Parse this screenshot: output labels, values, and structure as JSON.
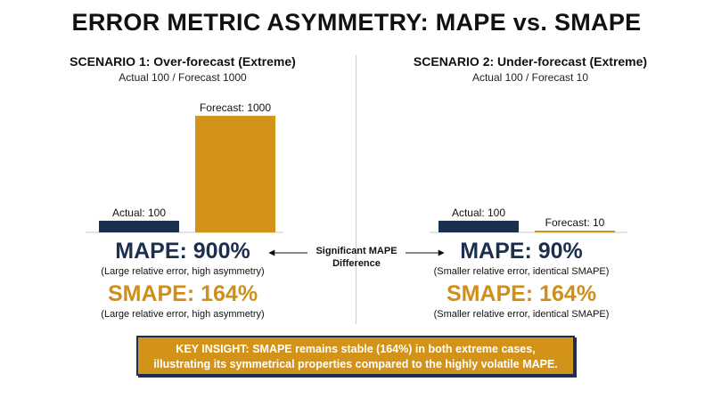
{
  "title": "ERROR METRIC ASYMMETRY: MAPE vs. SMAPE",
  "colors": {
    "actual": "#1b2f4f",
    "forecast": "#d39318",
    "smape_text": "#d08f1b"
  },
  "chart_data": [
    {
      "type": "bar",
      "title": "SCENARIO 1: Over-forecast (Extreme)",
      "subtitle": "Actual 100 / Forecast 1000",
      "categories": [
        "Actual",
        "Forecast"
      ],
      "values": [
        100,
        1000
      ],
      "data_labels": [
        "Actual: 100",
        "Forecast: 1000"
      ],
      "colors": [
        "#1b2f4f",
        "#d39318"
      ],
      "ylim": [
        0,
        1100
      ],
      "grid": false
    },
    {
      "type": "bar",
      "title": "SCENARIO 2: Under-forecast (Extreme)",
      "subtitle": "Actual 100 / Forecast 10",
      "categories": [
        "Actual",
        "Forecast"
      ],
      "values": [
        100,
        10
      ],
      "data_labels": [
        "Actual: 100",
        "Forecast: 10"
      ],
      "colors": [
        "#1b2f4f",
        "#d39318"
      ],
      "ylim": [
        0,
        1100
      ],
      "grid": false
    }
  ],
  "scenario1": {
    "mape": "MAPE: 900%",
    "mape_note": "(Large relative error, high asymmetry)",
    "smape": "SMAPE: 164%",
    "smape_note": "(Large relative error, high asymmetry)"
  },
  "scenario2": {
    "mape": "MAPE: 90%",
    "mape_note": "(Smaller relative error, identical SMAPE)",
    "smape": "SMAPE: 164%",
    "smape_note": "(Smaller relative error, identical SMAPE)"
  },
  "difference_label": "Significant MAPE Difference",
  "insight": {
    "line1": "KEY INSIGHT: SMAPE remains stable (164%) in both extreme cases,",
    "line2": "illustrating its symmetrical properties compared to the highly volatile MAPE."
  }
}
